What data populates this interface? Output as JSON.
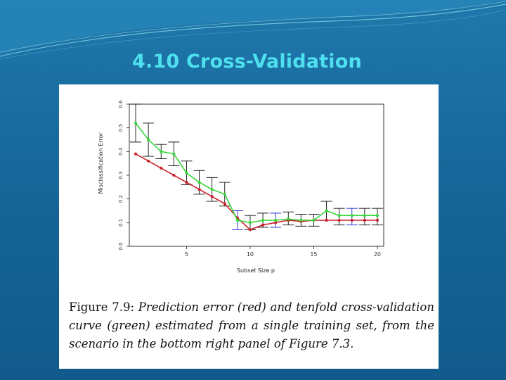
{
  "slide": {
    "title": "4.10 Cross-Validation"
  },
  "figure": {
    "caption_label": "Figure 7.9:",
    "caption_text": "Prediction error (red) and tenfold cross-validation curve (green) estimated from a single training set, from the scenario in the bottom right panel of Figure 7.3."
  },
  "colors": {
    "red_series": "#c8202a",
    "green_series": "#35d637",
    "error_bars": "#111111",
    "highlight_bars": "#1a2bd6"
  },
  "chart_data": {
    "type": "line",
    "title": "",
    "xlabel": "Subset Size p",
    "ylabel": "Misclassification Error",
    "xlim": [
      0.5,
      20.5
    ],
    "ylim": [
      0.0,
      0.6
    ],
    "x_ticks": [
      5,
      10,
      15,
      20
    ],
    "y_ticks": [
      0.0,
      0.1,
      0.2,
      0.3,
      0.4,
      0.5,
      0.6
    ],
    "x_tick_labels": [
      "5",
      "10",
      "15",
      "20"
    ],
    "y_tick_labels": [
      "0.0",
      "0.1",
      "0.2",
      "0.3",
      "0.4",
      "0.5",
      "0.6"
    ],
    "grid": false,
    "series": [
      {
        "color": "red",
        "x": [
          1,
          2,
          3,
          4,
          5,
          6,
          7,
          8,
          9,
          10,
          11,
          12,
          13,
          14,
          15,
          16,
          17,
          18,
          19,
          20
        ],
        "values": [
          0.39,
          0.36,
          0.33,
          0.3,
          0.27,
          0.24,
          0.21,
          0.18,
          0.12,
          0.07,
          0.09,
          0.1,
          0.11,
          0.105,
          0.11,
          0.11,
          0.11,
          0.11,
          0.11,
          0.11
        ]
      },
      {
        "color": "green",
        "x": [
          1,
          2,
          3,
          4,
          5,
          6,
          7,
          8,
          9,
          10,
          11,
          12,
          13,
          14,
          15,
          16,
          17,
          18,
          19,
          20
        ],
        "values": [
          0.52,
          0.45,
          0.4,
          0.39,
          0.31,
          0.27,
          0.24,
          0.22,
          0.11,
          0.1,
          0.11,
          0.11,
          0.115,
          0.11,
          0.11,
          0.15,
          0.13,
          0.13,
          0.13,
          0.13
        ]
      }
    ],
    "error_bars": {
      "x": [
        1,
        2,
        3,
        4,
        5,
        6,
        7,
        8,
        9,
        10,
        11,
        12,
        13,
        14,
        15,
        16,
        17,
        18,
        19,
        20
      ],
      "center": [
        0.52,
        0.45,
        0.4,
        0.39,
        0.31,
        0.27,
        0.24,
        0.22,
        0.11,
        0.1,
        0.11,
        0.11,
        0.115,
        0.11,
        0.11,
        0.15,
        0.13,
        0.13,
        0.13,
        0.13
      ],
      "low": [
        0.44,
        0.38,
        0.37,
        0.34,
        0.26,
        0.22,
        0.19,
        0.17,
        0.07,
        0.07,
        0.08,
        0.08,
        0.09,
        0.085,
        0.085,
        0.11,
        0.09,
        0.09,
        0.09,
        0.09
      ],
      "high": [
        0.6,
        0.52,
        0.43,
        0.44,
        0.36,
        0.32,
        0.29,
        0.27,
        0.15,
        0.13,
        0.14,
        0.14,
        0.145,
        0.135,
        0.135,
        0.19,
        0.16,
        0.16,
        0.16,
        0.16
      ],
      "highlighted_x": [
        9,
        12,
        18
      ]
    }
  }
}
